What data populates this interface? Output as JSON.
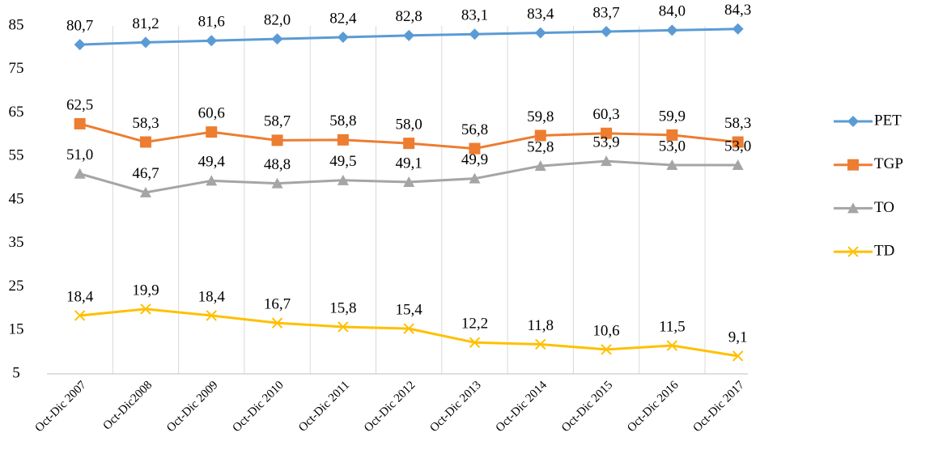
{
  "chart_data": {
    "type": "line",
    "categories": [
      "Oct-Dic 2007",
      "Oct-Dic2008",
      "Oct-Dic 2009",
      "Oct-Dic 2010",
      "Oct-Dic 2011",
      "Oct-Dic 2012",
      "Oct-Dic 2013",
      "Oct-Dic 2014",
      "Oct-Dic 2015",
      "Oct-Dic 2016",
      "Oct-Dic 2017"
    ],
    "series": [
      {
        "name": "PET",
        "color": "#5b9bd5",
        "marker": "diamond",
        "values": [
          80.7,
          81.2,
          81.6,
          82.0,
          82.4,
          82.8,
          83.1,
          83.4,
          83.7,
          84.0,
          84.3
        ],
        "value_labels": [
          "80,7",
          "81,2",
          "81,6",
          "82,0",
          "82,4",
          "82,8",
          "83,1",
          "83,4",
          "83,7",
          "84,0",
          "84,3"
        ]
      },
      {
        "name": "TGP",
        "color": "#ed7d31",
        "marker": "square",
        "values": [
          62.5,
          58.3,
          60.6,
          58.7,
          58.8,
          58.0,
          56.8,
          59.8,
          60.3,
          59.9,
          58.3
        ],
        "value_labels": [
          "62,5",
          "58,3",
          "60,6",
          "58,7",
          "58,8",
          "58,0",
          "56,8",
          "59,8",
          "60,3",
          "59,9",
          "58,3"
        ]
      },
      {
        "name": "TO",
        "color": "#a5a5a5",
        "marker": "triangle",
        "values": [
          51.0,
          46.7,
          49.4,
          48.8,
          49.5,
          49.1,
          49.9,
          52.8,
          53.9,
          53.0,
          53.0
        ],
        "value_labels": [
          "51,0",
          "46,7",
          "49,4",
          "48,8",
          "49,5",
          "49,1",
          "49,9",
          "52,8",
          "53,9",
          "53,0",
          "53,0"
        ]
      },
      {
        "name": "TD",
        "color": "#ffc000",
        "marker": "x",
        "values": [
          18.4,
          19.9,
          18.4,
          16.7,
          15.8,
          15.4,
          12.2,
          11.8,
          10.6,
          11.5,
          9.1
        ],
        "value_labels": [
          "18,4",
          "19,9",
          "18,4",
          "16,7",
          "15,8",
          "15,4",
          "12,2",
          "11,8",
          "10,6",
          "11,5",
          "9,1"
        ]
      }
    ],
    "ylim": [
      5,
      85
    ],
    "yticks": [
      5,
      15,
      25,
      35,
      45,
      55,
      65,
      75,
      85
    ],
    "legend": "right"
  }
}
